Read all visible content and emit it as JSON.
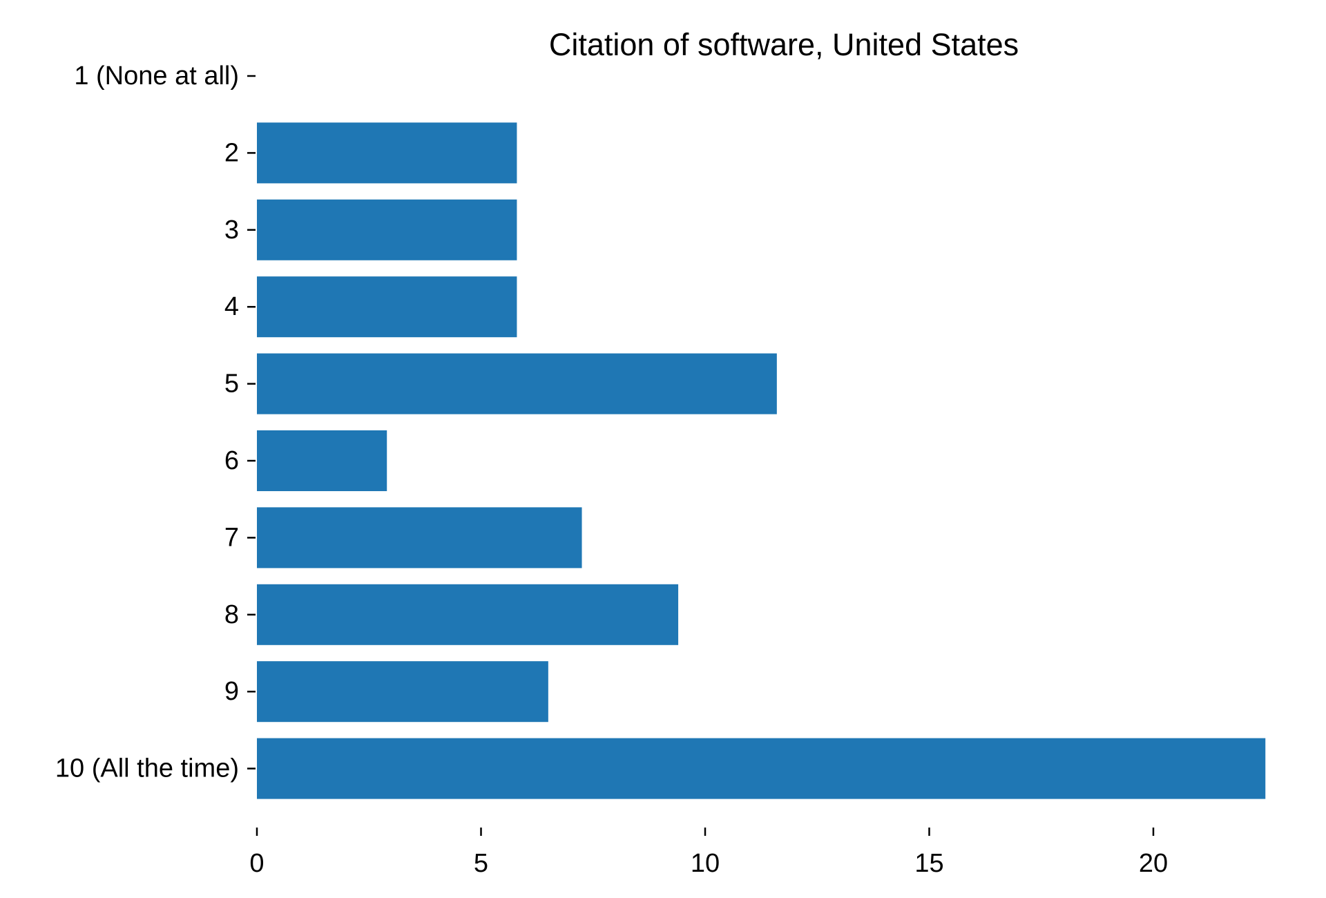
{
  "chart_data": {
    "type": "bar",
    "orientation": "horizontal",
    "title": "Citation of software, United States",
    "xlabel": "",
    "ylabel": "",
    "categories": [
      "1 (None at all)",
      "2",
      "3",
      "4",
      "5",
      "6",
      "7",
      "8",
      "9",
      "10 (All the time)"
    ],
    "values": [
      0,
      5.8,
      5.8,
      5.8,
      11.6,
      2.9,
      7.25,
      9.4,
      6.5,
      22.5
    ],
    "xlim": [
      0,
      23
    ],
    "xticks": [
      0,
      5,
      10,
      15,
      20
    ],
    "xtick_labels": [
      "0",
      "5",
      "10",
      "15",
      "20"
    ],
    "grid": false,
    "legend": "none",
    "bar_color": "#1f77b4"
  }
}
